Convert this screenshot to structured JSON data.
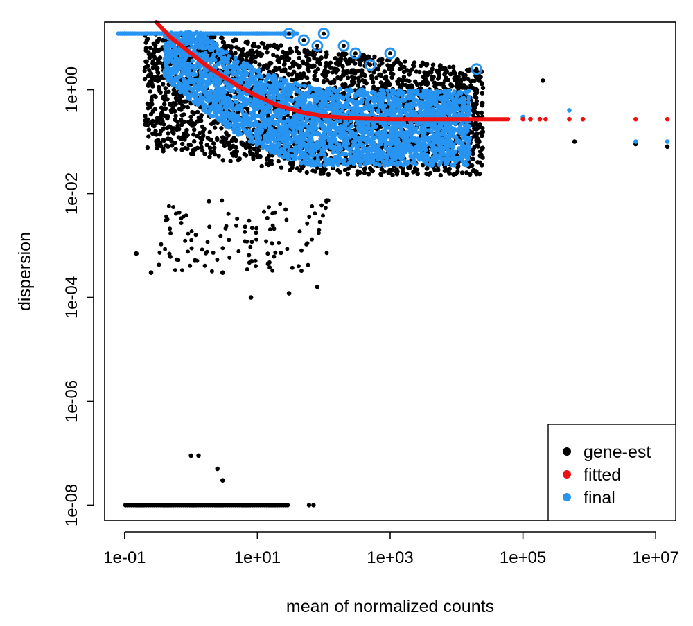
{
  "chart_data": {
    "type": "scatter",
    "title": "",
    "xlabel": "mean of normalized counts",
    "ylabel": "dispersion",
    "x_scale": "log10",
    "y_scale": "log10",
    "xlim": [
      0.05,
      20000000
    ],
    "ylim": [
      5e-09,
      20
    ],
    "x_ticks": [
      {
        "value": 0.1,
        "label": "1e-01"
      },
      {
        "value": 10,
        "label": "1e+01"
      },
      {
        "value": 1000,
        "label": "1e+03"
      },
      {
        "value": 100000,
        "label": "1e+05"
      },
      {
        "value": 10000000,
        "label": "1e+07"
      }
    ],
    "y_ticks": [
      {
        "value": 1,
        "label": "1e+00"
      },
      {
        "value": 0.01,
        "label": "1e-02"
      },
      {
        "value": 0.0001,
        "label": "1e-04"
      },
      {
        "value": 1e-06,
        "label": "1e-06"
      },
      {
        "value": 1e-08,
        "label": "1e-08"
      }
    ],
    "grid": false,
    "legend_position": "bottom-right",
    "series": [
      {
        "name": "gene-est",
        "color": "#000000",
        "representative_points": [
          {
            "x": 0.5,
            "y": 0.4
          },
          {
            "x": 1,
            "y": 0.25
          },
          {
            "x": 3,
            "y": 0.12
          },
          {
            "x": 10,
            "y": 0.08
          },
          {
            "x": 100,
            "y": 0.05
          },
          {
            "x": 1000,
            "y": 0.05
          },
          {
            "x": 10000,
            "y": 0.05
          },
          {
            "x": 0.15,
            "y": 0.0007
          },
          {
            "x": 0.25,
            "y": 0.0003
          },
          {
            "x": 8,
            "y": 0.0001
          },
          {
            "x": 30,
            "y": 0.00012
          },
          {
            "x": 80,
            "y": 0.00016
          },
          {
            "x": 3,
            "y": 0.0003
          },
          {
            "x": 1,
            "y": 9e-08
          },
          {
            "x": 1.3,
            "y": 9e-08
          },
          {
            "x": 2.5,
            "y": 5e-08
          },
          {
            "x": 3,
            "y": 3e-08
          },
          {
            "x": 200000,
            "y": 1.5
          },
          {
            "x": 600000,
            "y": 0.1
          },
          {
            "x": 5000000,
            "y": 0.09
          },
          {
            "x": 15000000,
            "y": 0.08
          }
        ],
        "floor": {
          "y": 1e-08,
          "x_min": 0.05,
          "x_max": 30,
          "extra_x": [
            60,
            70
          ]
        }
      },
      {
        "name": "fitted",
        "color": "#ee1111",
        "curve": [
          {
            "x": 0.3,
            "y": 20
          },
          {
            "x": 0.5,
            "y": 10
          },
          {
            "x": 1,
            "y": 5
          },
          {
            "x": 2,
            "y": 2.5
          },
          {
            "x": 5,
            "y": 1.2
          },
          {
            "x": 10,
            "y": 0.75
          },
          {
            "x": 20,
            "y": 0.5
          },
          {
            "x": 50,
            "y": 0.36
          },
          {
            "x": 100,
            "y": 0.31
          },
          {
            "x": 300,
            "y": 0.28
          },
          {
            "x": 1000,
            "y": 0.27
          },
          {
            "x": 10000,
            "y": 0.27
          },
          {
            "x": 60000,
            "y": 0.27
          }
        ],
        "points": [
          {
            "x": 100000,
            "y": 0.27
          },
          {
            "x": 130000,
            "y": 0.27
          },
          {
            "x": 180000,
            "y": 0.27
          },
          {
            "x": 220000,
            "y": 0.27
          },
          {
            "x": 500000,
            "y": 0.27
          },
          {
            "x": 800000,
            "y": 0.27
          },
          {
            "x": 5000000,
            "y": 0.27
          },
          {
            "x": 15000000,
            "y": 0.27
          }
        ]
      },
      {
        "name": "final",
        "color": "#2694f0",
        "representative_points": [
          {
            "x": 0.1,
            "y": 12
          },
          {
            "x": 1,
            "y": 12
          },
          {
            "x": 10,
            "y": 12
          },
          {
            "x": 1,
            "y": 2
          },
          {
            "x": 10,
            "y": 0.5
          },
          {
            "x": 100,
            "y": 0.2
          },
          {
            "x": 1000,
            "y": 0.12
          },
          {
            "x": 10000,
            "y": 0.1
          },
          {
            "x": 100000,
            "y": 0.3
          },
          {
            "x": 500000,
            "y": 0.4
          },
          {
            "x": 5000000,
            "y": 0.1
          },
          {
            "x": 15000000,
            "y": 0.1
          }
        ],
        "outliers_circled": [
          {
            "x": 30,
            "y": 12
          },
          {
            "x": 50,
            "y": 9
          },
          {
            "x": 80,
            "y": 7
          },
          {
            "x": 100,
            "y": 12
          },
          {
            "x": 200,
            "y": 7
          },
          {
            "x": 300,
            "y": 5
          },
          {
            "x": 500,
            "y": 3
          },
          {
            "x": 1000,
            "y": 5
          },
          {
            "x": 20000,
            "y": 2.5
          }
        ]
      }
    ]
  }
}
